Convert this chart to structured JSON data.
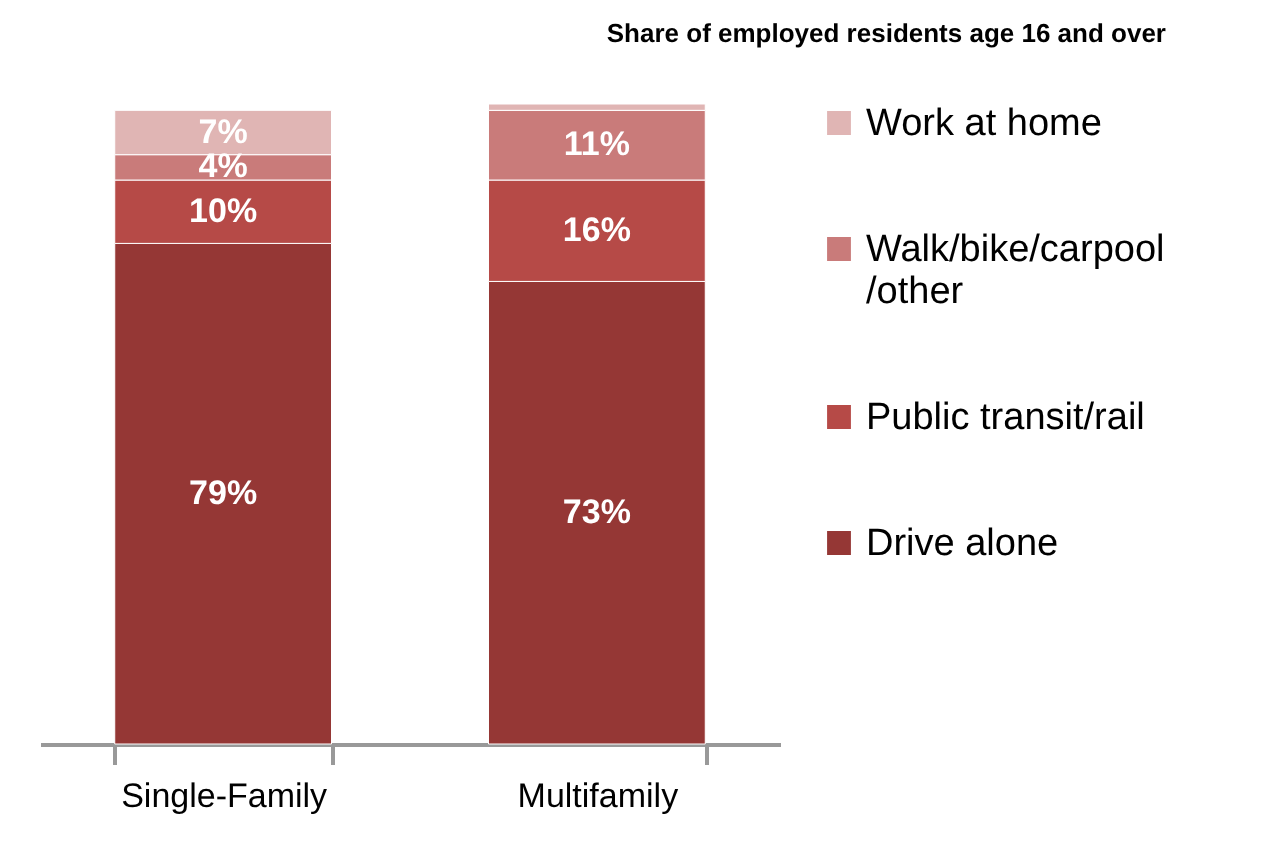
{
  "chart_data": {
    "type": "bar",
    "stacked": true,
    "title": "Share of employed residents age 16 and over",
    "categories": [
      "Single-Family",
      "Multifamily"
    ],
    "series": [
      {
        "name": "Drive alone",
        "color": "#953735",
        "values": [
          79,
          73
        ],
        "value_labels": [
          "79%",
          "73%"
        ]
      },
      {
        "name": "Public transit/rail",
        "color": "#b64a47",
        "values": [
          10,
          16
        ],
        "value_labels": [
          "10%",
          "16%"
        ]
      },
      {
        "name": "Walk/bike/carpool/other",
        "color": "#c97b7a",
        "values": [
          4,
          11
        ],
        "value_labels": [
          "4%",
          "11%"
        ]
      },
      {
        "name": "Work at home",
        "color": "#e0b5b4",
        "values": [
          7,
          1
        ],
        "value_labels": [
          "7%",
          null
        ]
      }
    ],
    "legend": "right",
    "grid": false
  }
}
